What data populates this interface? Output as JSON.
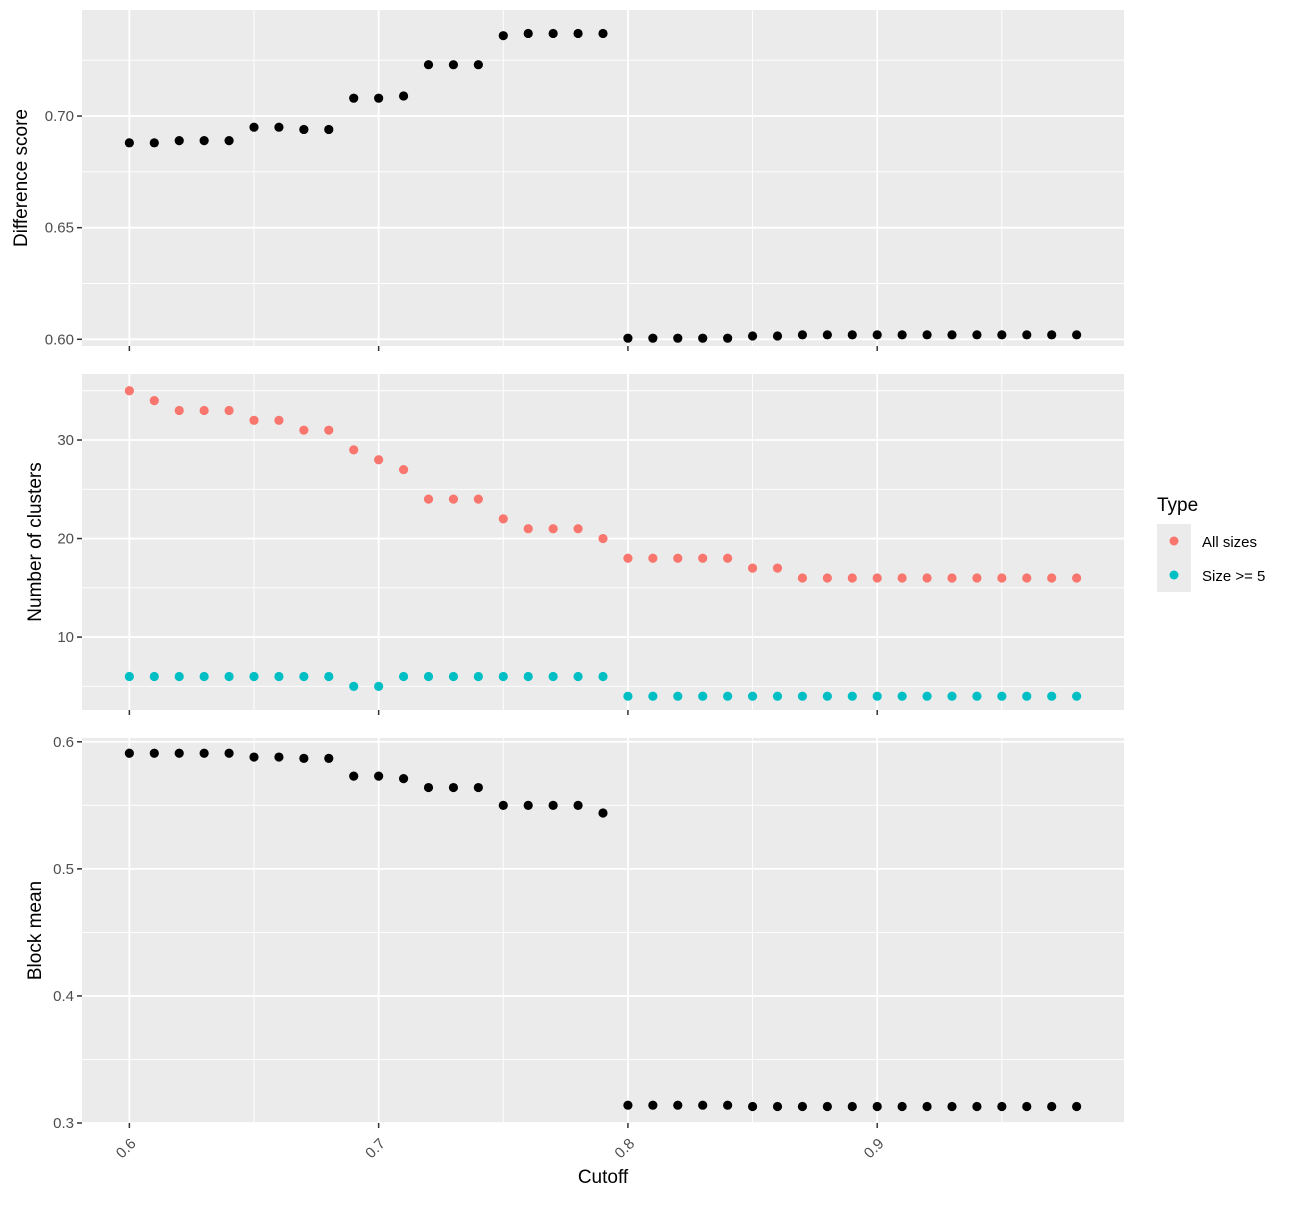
{
  "chart_data": [
    {
      "type": "scatter",
      "ylabel": "Difference score",
      "xlabel": "",
      "xlim": [
        0.581,
        0.999
      ],
      "ylim": [
        0.597,
        0.7475
      ],
      "yticks": [
        0.6,
        0.65,
        0.7
      ],
      "ytick_labels": [
        "0.60",
        "0.65",
        "0.70"
      ],
      "grid": true,
      "series": [
        {
          "color": "#000000",
          "x": [
            0.6,
            0.61,
            0.62,
            0.63,
            0.64,
            0.65,
            0.66,
            0.67,
            0.68,
            0.69,
            0.7,
            0.71,
            0.72,
            0.73,
            0.74,
            0.75,
            0.76,
            0.77,
            0.78,
            0.79,
            0.8,
            0.81,
            0.82,
            0.83,
            0.84,
            0.85,
            0.86,
            0.87,
            0.88,
            0.89,
            0.9,
            0.91,
            0.92,
            0.93,
            0.94,
            0.95,
            0.96,
            0.97,
            0.98
          ],
          "y": [
            0.688,
            0.688,
            0.689,
            0.689,
            0.689,
            0.695,
            0.695,
            0.694,
            0.694,
            0.708,
            0.708,
            0.709,
            0.723,
            0.723,
            0.723,
            0.736,
            0.737,
            0.737,
            0.737,
            0.737,
            0.6005,
            0.6005,
            0.6005,
            0.6005,
            0.6005,
            0.6015,
            0.6015,
            0.602,
            0.602,
            0.602,
            0.602,
            0.602,
            0.602,
            0.602,
            0.602,
            0.602,
            0.602,
            0.602,
            0.602
          ]
        }
      ]
    },
    {
      "type": "scatter",
      "ylabel": "Number of clusters",
      "xlabel": "",
      "xlim": [
        0.581,
        0.999
      ],
      "ylim": [
        2.6,
        36.7
      ],
      "yticks": [
        10,
        20,
        30
      ],
      "ytick_labels": [
        "10",
        "20",
        "30"
      ],
      "grid": true,
      "legend": {
        "title": "Type",
        "position": "right"
      },
      "series": [
        {
          "name": "All sizes",
          "color": "#F8766D",
          "x": [
            0.6,
            0.61,
            0.62,
            0.63,
            0.64,
            0.65,
            0.66,
            0.67,
            0.68,
            0.69,
            0.7,
            0.71,
            0.72,
            0.73,
            0.74,
            0.75,
            0.76,
            0.77,
            0.78,
            0.79,
            0.8,
            0.81,
            0.82,
            0.83,
            0.84,
            0.85,
            0.86,
            0.87,
            0.88,
            0.89,
            0.9,
            0.91,
            0.92,
            0.93,
            0.94,
            0.95,
            0.96,
            0.97,
            0.98
          ],
          "y": [
            35,
            34,
            33,
            33,
            33,
            32,
            32,
            31,
            31,
            29,
            28,
            27,
            24,
            24,
            24,
            22,
            21,
            21,
            21,
            20,
            18,
            18,
            18,
            18,
            18,
            17,
            17,
            16,
            16,
            16,
            16,
            16,
            16,
            16,
            16,
            16,
            16,
            16,
            16
          ]
        },
        {
          "name": "Size >= 5",
          "color": "#00BFC4",
          "x": [
            0.6,
            0.61,
            0.62,
            0.63,
            0.64,
            0.65,
            0.66,
            0.67,
            0.68,
            0.69,
            0.7,
            0.71,
            0.72,
            0.73,
            0.74,
            0.75,
            0.76,
            0.77,
            0.78,
            0.79,
            0.8,
            0.81,
            0.82,
            0.83,
            0.84,
            0.85,
            0.86,
            0.87,
            0.88,
            0.89,
            0.9,
            0.91,
            0.92,
            0.93,
            0.94,
            0.95,
            0.96,
            0.97,
            0.98
          ],
          "y": [
            6,
            6,
            6,
            6,
            6,
            6,
            6,
            6,
            6,
            5,
            5,
            6,
            6,
            6,
            6,
            6,
            6,
            6,
            6,
            6,
            4,
            4,
            4,
            4,
            4,
            4,
            4,
            4,
            4,
            4,
            4,
            4,
            4,
            4,
            4,
            4,
            4,
            4,
            4
          ]
        }
      ]
    },
    {
      "type": "scatter",
      "ylabel": "Block mean",
      "xlabel": "Cutoff",
      "xlim": [
        0.581,
        0.999
      ],
      "ylim": [
        0.3,
        0.603
      ],
      "xticks": [
        0.6,
        0.7,
        0.8,
        0.9
      ],
      "xtick_labels": [
        "0.6",
        "0.7",
        "0.8",
        "0.9"
      ],
      "yticks": [
        0.3,
        0.4,
        0.5,
        0.6
      ],
      "ytick_labels": [
        "0.3",
        "0.4",
        "0.5",
        "0.6"
      ],
      "grid": true,
      "series": [
        {
          "color": "#000000",
          "x": [
            0.6,
            0.61,
            0.62,
            0.63,
            0.64,
            0.65,
            0.66,
            0.67,
            0.68,
            0.69,
            0.7,
            0.71,
            0.72,
            0.73,
            0.74,
            0.75,
            0.76,
            0.77,
            0.78,
            0.79,
            0.8,
            0.81,
            0.82,
            0.83,
            0.84,
            0.85,
            0.86,
            0.87,
            0.88,
            0.89,
            0.9,
            0.91,
            0.92,
            0.93,
            0.94,
            0.95,
            0.96,
            0.97,
            0.98
          ],
          "y": [
            0.591,
            0.591,
            0.591,
            0.591,
            0.591,
            0.588,
            0.588,
            0.587,
            0.587,
            0.573,
            0.573,
            0.571,
            0.564,
            0.564,
            0.564,
            0.55,
            0.55,
            0.55,
            0.55,
            0.544,
            0.314,
            0.314,
            0.314,
            0.314,
            0.314,
            0.313,
            0.313,
            0.313,
            0.313,
            0.313,
            0.313,
            0.313,
            0.313,
            0.313,
            0.313,
            0.313,
            0.313,
            0.313,
            0.313
          ]
        }
      ]
    }
  ],
  "legend": {
    "title": "Type",
    "items": [
      {
        "label": "All sizes",
        "color": "#F8766D"
      },
      {
        "label": "Size >= 5",
        "color": "#00BFC4"
      }
    ]
  }
}
